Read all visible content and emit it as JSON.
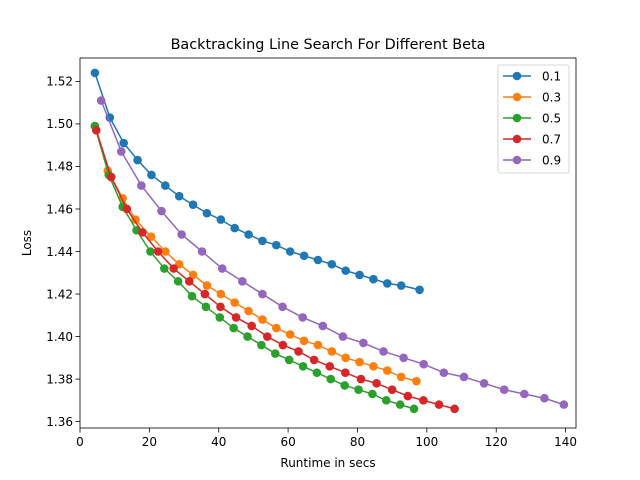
{
  "chart_data": {
    "type": "line",
    "title": "Backtracking Line Search For Different Beta",
    "xlabel": "Runtime in secs",
    "ylabel": "Loss",
    "xlim": [
      0,
      143
    ],
    "ylim": [
      1.357,
      1.531
    ],
    "xticks": [
      0,
      20,
      40,
      60,
      80,
      100,
      120,
      140
    ],
    "yticks": [
      1.36,
      1.38,
      1.4,
      1.42,
      1.44,
      1.46,
      1.48,
      1.5,
      1.52
    ],
    "ytick_labels": [
      "1.36",
      "1.38",
      "1.40",
      "1.42",
      "1.44",
      "1.46",
      "1.48",
      "1.50",
      "1.52"
    ],
    "grid": false,
    "legend_position": "top-right",
    "series": [
      {
        "name": "0.1",
        "color": "#1f77b4",
        "x": [
          4.3,
          8.6,
          12.6,
          16.6,
          20.6,
          24.6,
          28.6,
          32.6,
          36.6,
          40.6,
          44.6,
          48.6,
          52.6,
          56.6,
          60.6,
          64.6,
          68.6,
          72.6,
          76.6,
          80.6,
          84.6,
          88.6,
          92.6,
          97.9
        ],
        "y": [
          1.524,
          1.503,
          1.491,
          1.483,
          1.476,
          1.471,
          1.466,
          1.462,
          1.458,
          1.455,
          1.451,
          1.448,
          1.445,
          1.443,
          1.44,
          1.438,
          1.436,
          1.434,
          1.431,
          1.429,
          1.427,
          1.425,
          1.424,
          1.422
        ]
      },
      {
        "name": "0.3",
        "color": "#ff7f0e",
        "x": [
          4.3,
          8.0,
          12.3,
          16.0,
          20.5,
          24.6,
          28.6,
          32.6,
          36.6,
          40.6,
          44.6,
          48.6,
          52.6,
          56.6,
          60.6,
          64.6,
          68.6,
          72.6,
          76.6,
          80.6,
          84.6,
          88.6,
          92.6,
          97.0
        ],
        "y": [
          1.499,
          1.478,
          1.465,
          1.455,
          1.447,
          1.44,
          1.434,
          1.429,
          1.424,
          1.42,
          1.416,
          1.412,
          1.408,
          1.404,
          1.401,
          1.398,
          1.396,
          1.393,
          1.39,
          1.388,
          1.386,
          1.384,
          1.381,
          1.379
        ]
      },
      {
        "name": "0.5",
        "color": "#2ca02c",
        "x": [
          4.3,
          8.3,
          12.3,
          16.3,
          20.3,
          24.3,
          28.3,
          32.3,
          36.3,
          40.3,
          44.3,
          48.3,
          52.3,
          56.3,
          60.3,
          64.3,
          68.3,
          72.3,
          76.3,
          80.3,
          84.3,
          88.3,
          92.3,
          96.3
        ],
        "y": [
          1.499,
          1.476,
          1.461,
          1.45,
          1.44,
          1.432,
          1.426,
          1.419,
          1.414,
          1.409,
          1.404,
          1.4,
          1.396,
          1.392,
          1.389,
          1.386,
          1.383,
          1.38,
          1.377,
          1.375,
          1.373,
          1.37,
          1.368,
          1.366
        ]
      },
      {
        "name": "0.7",
        "color": "#d62728",
        "x": [
          4.7,
          9.0,
          13.5,
          18.0,
          22.5,
          27.0,
          31.5,
          36.0,
          40.5,
          45.0,
          49.5,
          54.0,
          58.5,
          63.0,
          67.5,
          72.0,
          76.5,
          81.0,
          85.5,
          90.0,
          94.5,
          99.0,
          103.5,
          108.0
        ],
        "y": [
          1.497,
          1.475,
          1.46,
          1.449,
          1.44,
          1.432,
          1.426,
          1.42,
          1.414,
          1.409,
          1.405,
          1.4,
          1.396,
          1.393,
          1.389,
          1.386,
          1.383,
          1.38,
          1.378,
          1.375,
          1.372,
          1.37,
          1.368,
          1.366
        ]
      },
      {
        "name": "0.9",
        "color": "#9467bd",
        "x": [
          6.1,
          11.9,
          17.7,
          23.5,
          29.3,
          35.2,
          41.0,
          46.8,
          52.6,
          58.4,
          64.2,
          70.0,
          75.8,
          81.7,
          87.5,
          93.3,
          99.1,
          104.9,
          110.7,
          116.5,
          122.3,
          128.1,
          133.9,
          139.5
        ],
        "y": [
          1.511,
          1.487,
          1.471,
          1.459,
          1.448,
          1.44,
          1.432,
          1.426,
          1.42,
          1.414,
          1.409,
          1.405,
          1.4,
          1.397,
          1.393,
          1.39,
          1.387,
          1.383,
          1.381,
          1.378,
          1.375,
          1.373,
          1.371,
          1.368
        ]
      }
    ]
  }
}
